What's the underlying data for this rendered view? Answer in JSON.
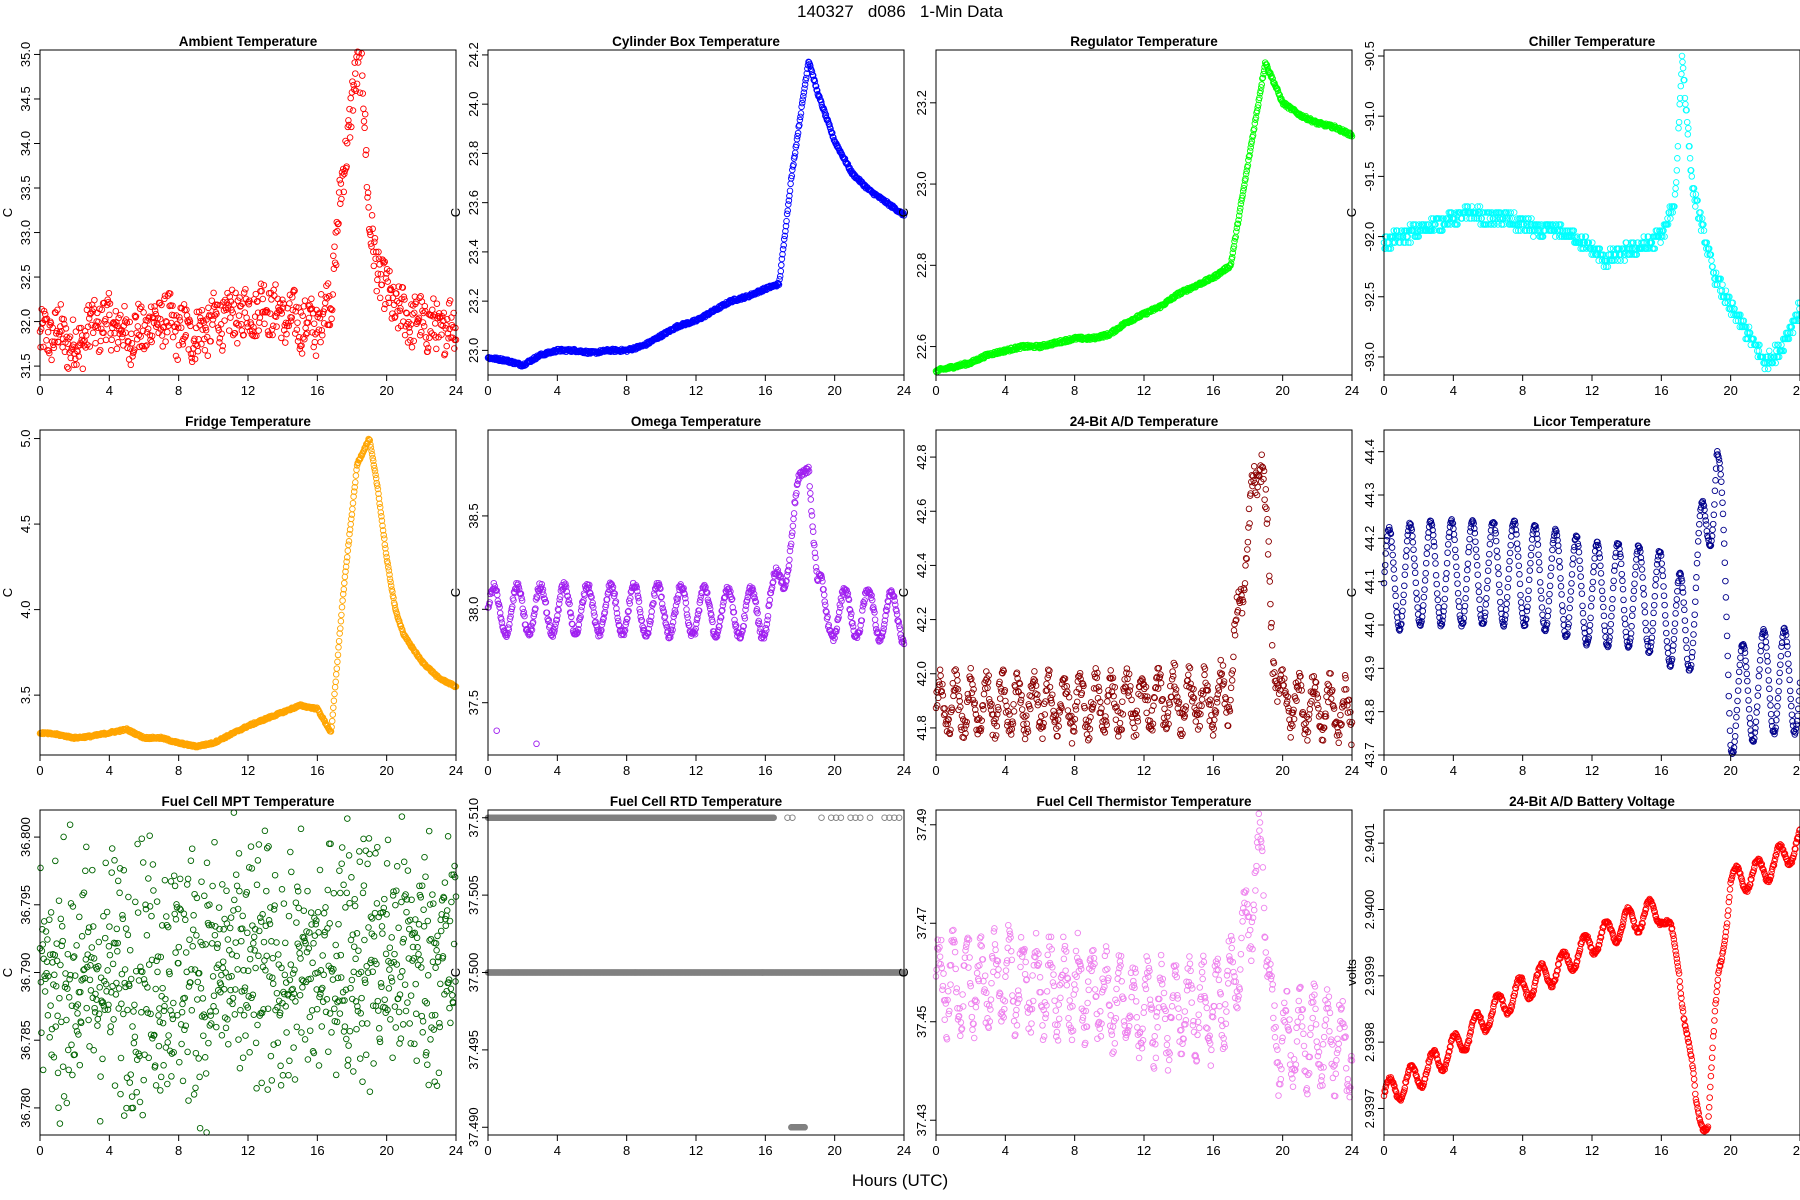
{
  "figure": {
    "title": "140327   d086   1-Min Data",
    "xlabel": "Hours (UTC)"
  },
  "chart_data": [
    {
      "type": "scatter",
      "title": "Ambient Temperature",
      "ylabel": "C",
      "color": "#ff0000",
      "xlim": [
        0,
        24
      ],
      "ylim": [
        31.4,
        35.05
      ],
      "xticks": [
        0,
        4,
        8,
        12,
        16,
        20,
        24
      ],
      "yticks": [
        31.5,
        32.0,
        32.5,
        33.0,
        33.5,
        34.0,
        34.5,
        35.0
      ],
      "yticklabels": [
        "31.5",
        "32.0",
        "32.5",
        "33.0",
        "33.5",
        "34.0",
        "34.5",
        "35.0"
      ],
      "series": [
        {
          "name": "Ambient Temperature",
          "x": [
            0,
            1,
            2,
            3,
            4,
            5,
            6,
            7,
            8,
            9,
            10,
            11,
            12,
            13,
            14,
            15,
            16,
            16.8,
            17.4,
            18,
            18.6,
            19,
            19.5,
            20,
            21,
            22,
            23,
            24
          ],
          "y": [
            31.8,
            31.9,
            31.7,
            31.95,
            32.0,
            31.85,
            31.9,
            32.05,
            31.9,
            31.85,
            32.0,
            32.05,
            32.1,
            32.2,
            32.05,
            32.0,
            31.95,
            32.3,
            33.5,
            34.5,
            34.95,
            33.0,
            32.6,
            32.3,
            32.05,
            32.0,
            31.9,
            32.0
          ],
          "noise": 0.28,
          "wave_amp": 0.08,
          "wave_period": 0.9
        }
      ]
    },
    {
      "type": "scatter",
      "title": "Cylinder Box Temperature",
      "ylabel": "C",
      "color": "#0000ff",
      "xlim": [
        0,
        24
      ],
      "ylim": [
        22.9,
        24.22
      ],
      "xticks": [
        0,
        4,
        8,
        12,
        16,
        20,
        24
      ],
      "yticks": [
        23.0,
        23.2,
        23.4,
        23.6,
        23.8,
        24.0,
        24.2
      ],
      "yticklabels": [
        "23.0",
        "23.2",
        "23.4",
        "23.6",
        "23.8",
        "24.0",
        "24.2"
      ],
      "series": [
        {
          "name": "Cylinder Box Temperature",
          "x": [
            0,
            1,
            2,
            3,
            4,
            5,
            6,
            7,
            8,
            9,
            10,
            11,
            12,
            13,
            14,
            15,
            16,
            16.8,
            17.5,
            18.5,
            19,
            20,
            21,
            22,
            23,
            24
          ],
          "y": [
            22.97,
            22.96,
            22.94,
            22.98,
            23.0,
            23.0,
            22.99,
            23.0,
            23.0,
            23.02,
            23.06,
            23.1,
            23.12,
            23.16,
            23.2,
            23.22,
            23.25,
            23.27,
            23.7,
            24.18,
            24.05,
            23.85,
            23.72,
            23.65,
            23.6,
            23.55
          ],
          "noise": 0.006,
          "wave_amp": 0,
          "wave_period": 1
        }
      ]
    },
    {
      "type": "scatter",
      "title": "Regulator Temperature",
      "ylabel": "C",
      "color": "#00ff00",
      "xlim": [
        0,
        24
      ],
      "ylim": [
        22.53,
        23.33
      ],
      "xticks": [
        0,
        4,
        8,
        12,
        16,
        20,
        24
      ],
      "yticks": [
        22.6,
        22.8,
        23.0,
        23.2
      ],
      "yticklabels": [
        "22.6",
        "22.8",
        "23.0",
        "23.2"
      ],
      "series": [
        {
          "name": "Regulator Temperature",
          "x": [
            0,
            1,
            2,
            3,
            4,
            5,
            6,
            7,
            8,
            9,
            10,
            11,
            12,
            13,
            14,
            15,
            16,
            17,
            18,
            19,
            20,
            21,
            22,
            23,
            24
          ],
          "y": [
            22.54,
            22.55,
            22.56,
            22.58,
            22.59,
            22.6,
            22.6,
            22.61,
            22.62,
            22.62,
            22.63,
            22.66,
            22.68,
            22.7,
            22.73,
            22.75,
            22.77,
            22.8,
            23.05,
            23.3,
            23.2,
            23.17,
            23.15,
            23.14,
            23.12
          ],
          "noise": 0.004,
          "wave_amp": 0,
          "wave_period": 1
        }
      ]
    },
    {
      "type": "scatter",
      "title": "Chiller Temperature",
      "ylabel": "C",
      "color": "#00ffff",
      "xlim": [
        0,
        24
      ],
      "ylim": [
        -93.15,
        -90.45
      ],
      "xticks": [
        0,
        4,
        8,
        12,
        16,
        20,
        24
      ],
      "yticks": [
        -93.0,
        -92.5,
        -92.0,
        -91.5,
        -91.0,
        -90.5
      ],
      "yticklabels": [
        "-93.0",
        "-92.5",
        "-92.0",
        "-91.5",
        "-91.0",
        "-90.5"
      ],
      "series": [
        {
          "name": "Chiller Temperature",
          "x": [
            0,
            1,
            2,
            3,
            4,
            5,
            6,
            7,
            8,
            9,
            10,
            11,
            12,
            12.8,
            13.5,
            14.5,
            15.5,
            16.2,
            16.8,
            17.2,
            17.8,
            18.5,
            19,
            20,
            21,
            22,
            22.8,
            24
          ],
          "y": [
            -92.05,
            -92.0,
            -91.95,
            -91.9,
            -91.85,
            -91.8,
            -91.85,
            -91.85,
            -91.9,
            -91.95,
            -91.95,
            -92.0,
            -92.1,
            -92.2,
            -92.15,
            -92.1,
            -92.05,
            -91.95,
            -91.7,
            -90.5,
            -91.6,
            -92.0,
            -92.3,
            -92.6,
            -92.8,
            -93.05,
            -92.95,
            -92.6
          ],
          "noise": 0.06,
          "wave_amp": 0,
          "wave_period": 1,
          "quantum": 0.05
        }
      ]
    },
    {
      "type": "scatter",
      "title": "Fridge Temperature",
      "ylabel": "C",
      "color": "#ffa500",
      "xlim": [
        0,
        24
      ],
      "ylim": [
        3.15,
        5.05
      ],
      "xticks": [
        0,
        4,
        8,
        12,
        16,
        20,
        24
      ],
      "yticks": [
        3.5,
        4.0,
        4.5,
        5.0
      ],
      "yticklabels": [
        "3.5",
        "4.0",
        "4.5",
        "5.0"
      ],
      "series": [
        {
          "name": "Fridge Temperature",
          "x": [
            0,
            1,
            2,
            3,
            4,
            5,
            6,
            7,
            8,
            9,
            10,
            11,
            12,
            13,
            14,
            15,
            16,
            16.8,
            17.5,
            18.3,
            19,
            19.5,
            20,
            20.5,
            21,
            22,
            23,
            24
          ],
          "y": [
            3.28,
            3.27,
            3.25,
            3.26,
            3.28,
            3.3,
            3.25,
            3.25,
            3.22,
            3.2,
            3.22,
            3.27,
            3.32,
            3.36,
            3.4,
            3.44,
            3.42,
            3.28,
            4.1,
            4.85,
            5.0,
            4.7,
            4.3,
            4.0,
            3.85,
            3.7,
            3.6,
            3.55
          ],
          "noise": 0.006,
          "wave_amp": 0,
          "wave_period": 1
        }
      ]
    },
    {
      "type": "scatter",
      "title": "Omega Temperature",
      "ylabel": "C",
      "color": "#a020f0",
      "xlim": [
        0,
        24
      ],
      "ylim": [
        37.22,
        38.96
      ],
      "xticks": [
        0,
        4,
        8,
        12,
        16,
        20,
        24
      ],
      "yticks": [
        37.5,
        38.0,
        38.5
      ],
      "yticklabels": [
        "37.5",
        "38.0",
        "38.5"
      ],
      "series": [
        {
          "name": "Omega Temperature",
          "x": [
            0,
            4,
            8,
            12,
            16,
            16.5,
            17,
            17.5,
            18,
            18.5,
            19,
            19.5,
            20,
            22,
            24
          ],
          "y": [
            37.99,
            38.0,
            38.0,
            37.99,
            37.98,
            38.05,
            38.2,
            38.4,
            38.6,
            38.9,
            38.1,
            37.95,
            37.98,
            37.98,
            37.96
          ],
          "noise": 0.02,
          "wave_amp": 0.13,
          "wave_period": 1.35,
          "outliers": [
            [
              0.5,
              37.35
            ],
            [
              2.8,
              37.28
            ]
          ]
        }
      ]
    },
    {
      "type": "scatter",
      "title": "24-Bit A/D Temperature",
      "ylabel": "C",
      "color": "#8b0000",
      "xlim": [
        0,
        24
      ],
      "ylim": [
        41.7,
        42.9
      ],
      "xticks": [
        0,
        4,
        8,
        12,
        16,
        20,
        24
      ],
      "yticks": [
        41.8,
        42.0,
        42.2,
        42.4,
        42.6,
        42.8
      ],
      "yticklabels": [
        "41.8",
        "42.0",
        "42.2",
        "42.4",
        "42.6",
        "42.8"
      ],
      "series": [
        {
          "name": "24-Bit A/D Temperature",
          "x": [
            0,
            4,
            8,
            12,
            16,
            17,
            17.6,
            18.2,
            18.8,
            19.4,
            20,
            22,
            24
          ],
          "y": [
            41.88,
            41.89,
            41.88,
            41.9,
            41.9,
            41.95,
            42.3,
            42.6,
            42.85,
            42.1,
            41.9,
            41.88,
            41.85
          ],
          "noise": 0.05,
          "wave_amp": 0.09,
          "wave_period": 0.9
        }
      ]
    },
    {
      "type": "scatter",
      "title": "Licor Temperature",
      "ylabel": "C",
      "color": "#00008b",
      "xlim": [
        0,
        24
      ],
      "ylim": [
        43.7,
        44.45
      ],
      "xticks": [
        0,
        4,
        8,
        12,
        16,
        20,
        24
      ],
      "yticks": [
        43.7,
        43.8,
        43.9,
        44.0,
        44.1,
        44.2,
        44.3,
        44.4
      ],
      "yticklabels": [
        "43.7",
        "43.8",
        "43.9",
        "44.0",
        "44.1",
        "44.2",
        "44.3",
        "44.4"
      ],
      "series": [
        {
          "name": "Licor Temperature",
          "x": [
            0,
            2,
            4,
            6,
            8,
            10,
            12,
            14,
            16,
            17.5,
            18.5,
            19.2,
            20,
            22,
            24
          ],
          "y": [
            44.1,
            44.12,
            44.12,
            44.12,
            44.12,
            44.1,
            44.07,
            44.07,
            44.05,
            43.98,
            44.2,
            44.4,
            43.82,
            43.87,
            43.87
          ],
          "noise": 0.004,
          "wave_amp": 0.12,
          "wave_period": 1.2
        }
      ]
    },
    {
      "type": "scatter",
      "title": "Fuel Cell MPT Temperature",
      "ylabel": "C",
      "color": "#006400",
      "xlim": [
        0,
        24
      ],
      "ylim": [
        36.778,
        36.802
      ],
      "xticks": [
        0,
        4,
        8,
        12,
        16,
        20,
        24
      ],
      "yticks": [
        36.78,
        36.785,
        36.79,
        36.795,
        36.8
      ],
      "yticklabels": [
        "36.780",
        "36.785",
        "36.790",
        "36.795",
        "36.800"
      ],
      "series": [
        {
          "name": "Fuel Cell MPT Temperature",
          "x": [
            0,
            6,
            12,
            16,
            18,
            20,
            24
          ],
          "y": [
            36.789,
            36.79,
            36.79,
            36.79,
            36.792,
            36.791,
            36.791
          ],
          "noise": 0.0095,
          "wave_amp": 0,
          "wave_period": 1,
          "count": 900
        }
      ]
    },
    {
      "type": "scatter",
      "title": "Fuel Cell RTD Temperature",
      "ylabel": "C",
      "color": "#808080",
      "xlim": [
        0,
        24
      ],
      "ylim": [
        37.4895,
        37.5105
      ],
      "xticks": [
        0,
        4,
        8,
        12,
        16,
        20,
        24
      ],
      "yticks": [
        37.49,
        37.495,
        37.5,
        37.505,
        37.51
      ],
      "yticklabels": [
        "37.490",
        "37.495",
        "37.500",
        "37.505",
        "37.510"
      ],
      "series": [
        {
          "name": "Fuel Cell RTD Temperature",
          "levels": [
            37.49,
            37.5,
            37.51
          ],
          "segments": [
            [
              0,
              24,
              37.5
            ],
            [
              0,
              16.5,
              37.51
            ],
            [
              17,
              24,
              37.51,
              "sparse"
            ],
            [
              17.5,
              18.3,
              37.49
            ]
          ]
        }
      ]
    },
    {
      "type": "scatter",
      "title": "Fuel Cell Thermistor Temperature",
      "ylabel": "C",
      "color": "#ee82ee",
      "xlim": [
        0,
        24
      ],
      "ylim": [
        37.427,
        37.493
      ],
      "xticks": [
        0,
        4,
        8,
        12,
        16,
        20,
        24
      ],
      "yticks": [
        37.43,
        37.45,
        37.47,
        37.49
      ],
      "yticklabels": [
        "37.43",
        "37.45",
        "37.47",
        "37.49"
      ],
      "series": [
        {
          "name": "Fuel Cell Thermistor Temperature",
          "x": [
            0,
            4,
            8,
            12,
            16,
            17,
            18,
            18.8,
            19.5,
            20,
            22,
            24
          ],
          "y": [
            37.458,
            37.458,
            37.457,
            37.452,
            37.452,
            37.458,
            37.47,
            37.485,
            37.445,
            37.447,
            37.447,
            37.445
          ],
          "noise": 0.004,
          "wave_amp": 0.008,
          "wave_period": 0.8
        }
      ]
    },
    {
      "type": "scatter",
      "title": "24-Bit A/D Battery Voltage",
      "ylabel": "volts",
      "color": "#ff0000",
      "xlim": [
        0,
        24
      ],
      "ylim": [
        2.93966,
        2.94015
      ],
      "xticks": [
        0,
        4,
        8,
        12,
        16,
        20,
        24
      ],
      "yticks": [
        2.9397,
        2.9398,
        2.9399,
        2.94,
        2.9401
      ],
      "yticklabels": [
        "2.9397",
        "2.9398",
        "2.9399",
        "2.9400",
        "2.9401"
      ],
      "series": [
        {
          "name": "24-Bit A/D Battery Voltage",
          "x": [
            0,
            2,
            4,
            6,
            8,
            10,
            12,
            14,
            16,
            17,
            18,
            18.7,
            19.3,
            20,
            22,
            24
          ],
          "y": [
            2.93972,
            2.93975,
            2.93979,
            2.93984,
            2.93988,
            2.93991,
            2.93995,
            2.93998,
            2.94,
            2.93992,
            2.9397,
            2.93968,
            2.9399,
            2.94004,
            2.94006,
            2.9401
          ],
          "noise": 3e-06,
          "wave_amp": 2e-05,
          "wave_period": 1.25
        }
      ]
    }
  ]
}
